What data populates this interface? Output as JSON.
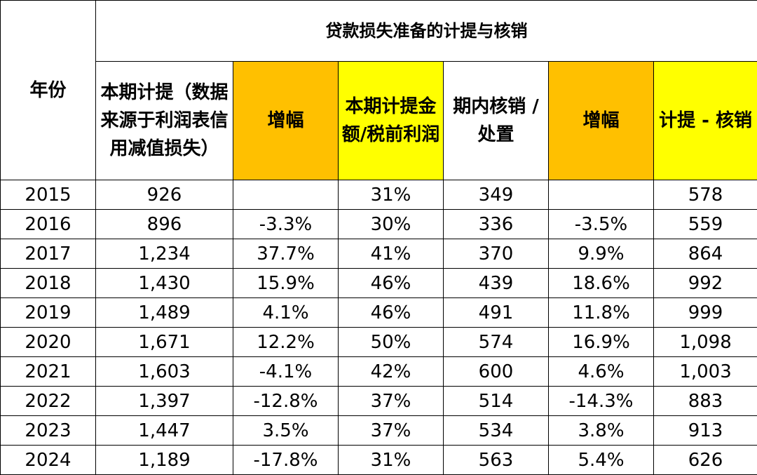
{
  "table": {
    "year_header": "年份",
    "group_title": "贷款损失准备的计提与核销",
    "columns": [
      {
        "key": "provision",
        "label": "本期计提（数据来源于利润表信用减值损失）",
        "bg": "#FFFFFF"
      },
      {
        "key": "provision_growth",
        "label": "增幅",
        "bg": "#FFC000"
      },
      {
        "key": "ratio",
        "label": "本期计提金额/税前利润",
        "bg": "#FFFF00"
      },
      {
        "key": "writeoff",
        "label": "期内核销 / 处置",
        "bg": "#FFFFFF"
      },
      {
        "key": "writeoff_growth",
        "label": "增幅",
        "bg": "#FFC000"
      },
      {
        "key": "net",
        "label": "计提 - 核销",
        "bg": "#FFFF00"
      }
    ],
    "rows": [
      {
        "year": "2015",
        "provision": "926",
        "provision_growth": "",
        "ratio": "31%",
        "writeoff": "349",
        "writeoff_growth": "",
        "net": "578"
      },
      {
        "year": "2016",
        "provision": "896",
        "provision_growth": "-3.3%",
        "ratio": "30%",
        "writeoff": "336",
        "writeoff_growth": "-3.5%",
        "net": "559"
      },
      {
        "year": "2017",
        "provision": "1,234",
        "provision_growth": "37.7%",
        "ratio": "41%",
        "writeoff": "370",
        "writeoff_growth": "9.9%",
        "net": "864"
      },
      {
        "year": "2018",
        "provision": "1,430",
        "provision_growth": "15.9%",
        "ratio": "46%",
        "writeoff": "439",
        "writeoff_growth": "18.6%",
        "net": "992"
      },
      {
        "year": "2019",
        "provision": "1,489",
        "provision_growth": "4.1%",
        "ratio": "46%",
        "writeoff": "491",
        "writeoff_growth": "11.8%",
        "net": "999"
      },
      {
        "year": "2020",
        "provision": "1,671",
        "provision_growth": "12.2%",
        "ratio": "50%",
        "writeoff": "574",
        "writeoff_growth": "16.9%",
        "net": "1,098"
      },
      {
        "year": "2021",
        "provision": "1,603",
        "provision_growth": "-4.1%",
        "ratio": "42%",
        "writeoff": "600",
        "writeoff_growth": "4.6%",
        "net": "1,003"
      },
      {
        "year": "2022",
        "provision": "1,397",
        "provision_growth": "-12.8%",
        "ratio": "37%",
        "writeoff": "514",
        "writeoff_growth": "-14.3%",
        "net": "883"
      },
      {
        "year": "2023",
        "provision": "1,447",
        "provision_growth": "3.5%",
        "ratio": "37%",
        "writeoff": "534",
        "writeoff_growth": "3.8%",
        "net": "913"
      },
      {
        "year": "2024",
        "provision": "1,189",
        "provision_growth": "-17.8%",
        "ratio": "31%",
        "writeoff": "563",
        "writeoff_growth": "5.4%",
        "net": "626"
      }
    ]
  }
}
